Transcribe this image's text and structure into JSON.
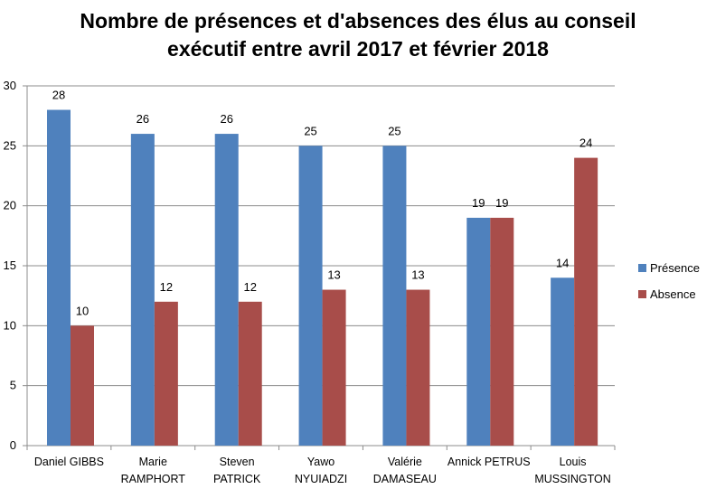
{
  "chart_data": {
    "type": "bar",
    "title": [
      "Nombre de présences et d'absences des élus au conseil",
      "exécutif entre avril 2017 et février 2018"
    ],
    "categories": [
      [
        "Daniel GIBBS"
      ],
      [
        "Marie",
        "RAMPHORT"
      ],
      [
        "Steven",
        "PATRICK"
      ],
      [
        "Yawo",
        "NYUIADZI"
      ],
      [
        "Valérie",
        "DAMASEAU"
      ],
      [
        "Annick PETRUS"
      ],
      [
        "Louis",
        "MUSSINGTON"
      ]
    ],
    "series": [
      {
        "name": "Présence",
        "color": "#4f81bd",
        "values": [
          28,
          26,
          26,
          25,
          25,
          19,
          14
        ]
      },
      {
        "name": "Absence",
        "color": "#a84d4a",
        "values": [
          10,
          12,
          12,
          13,
          13,
          19,
          24
        ]
      }
    ],
    "ylim": [
      0,
      30
    ],
    "yticks": [
      0,
      5,
      10,
      15,
      20,
      25,
      30
    ],
    "grid": true,
    "legend_position": "right",
    "xlabel": "",
    "ylabel": ""
  }
}
